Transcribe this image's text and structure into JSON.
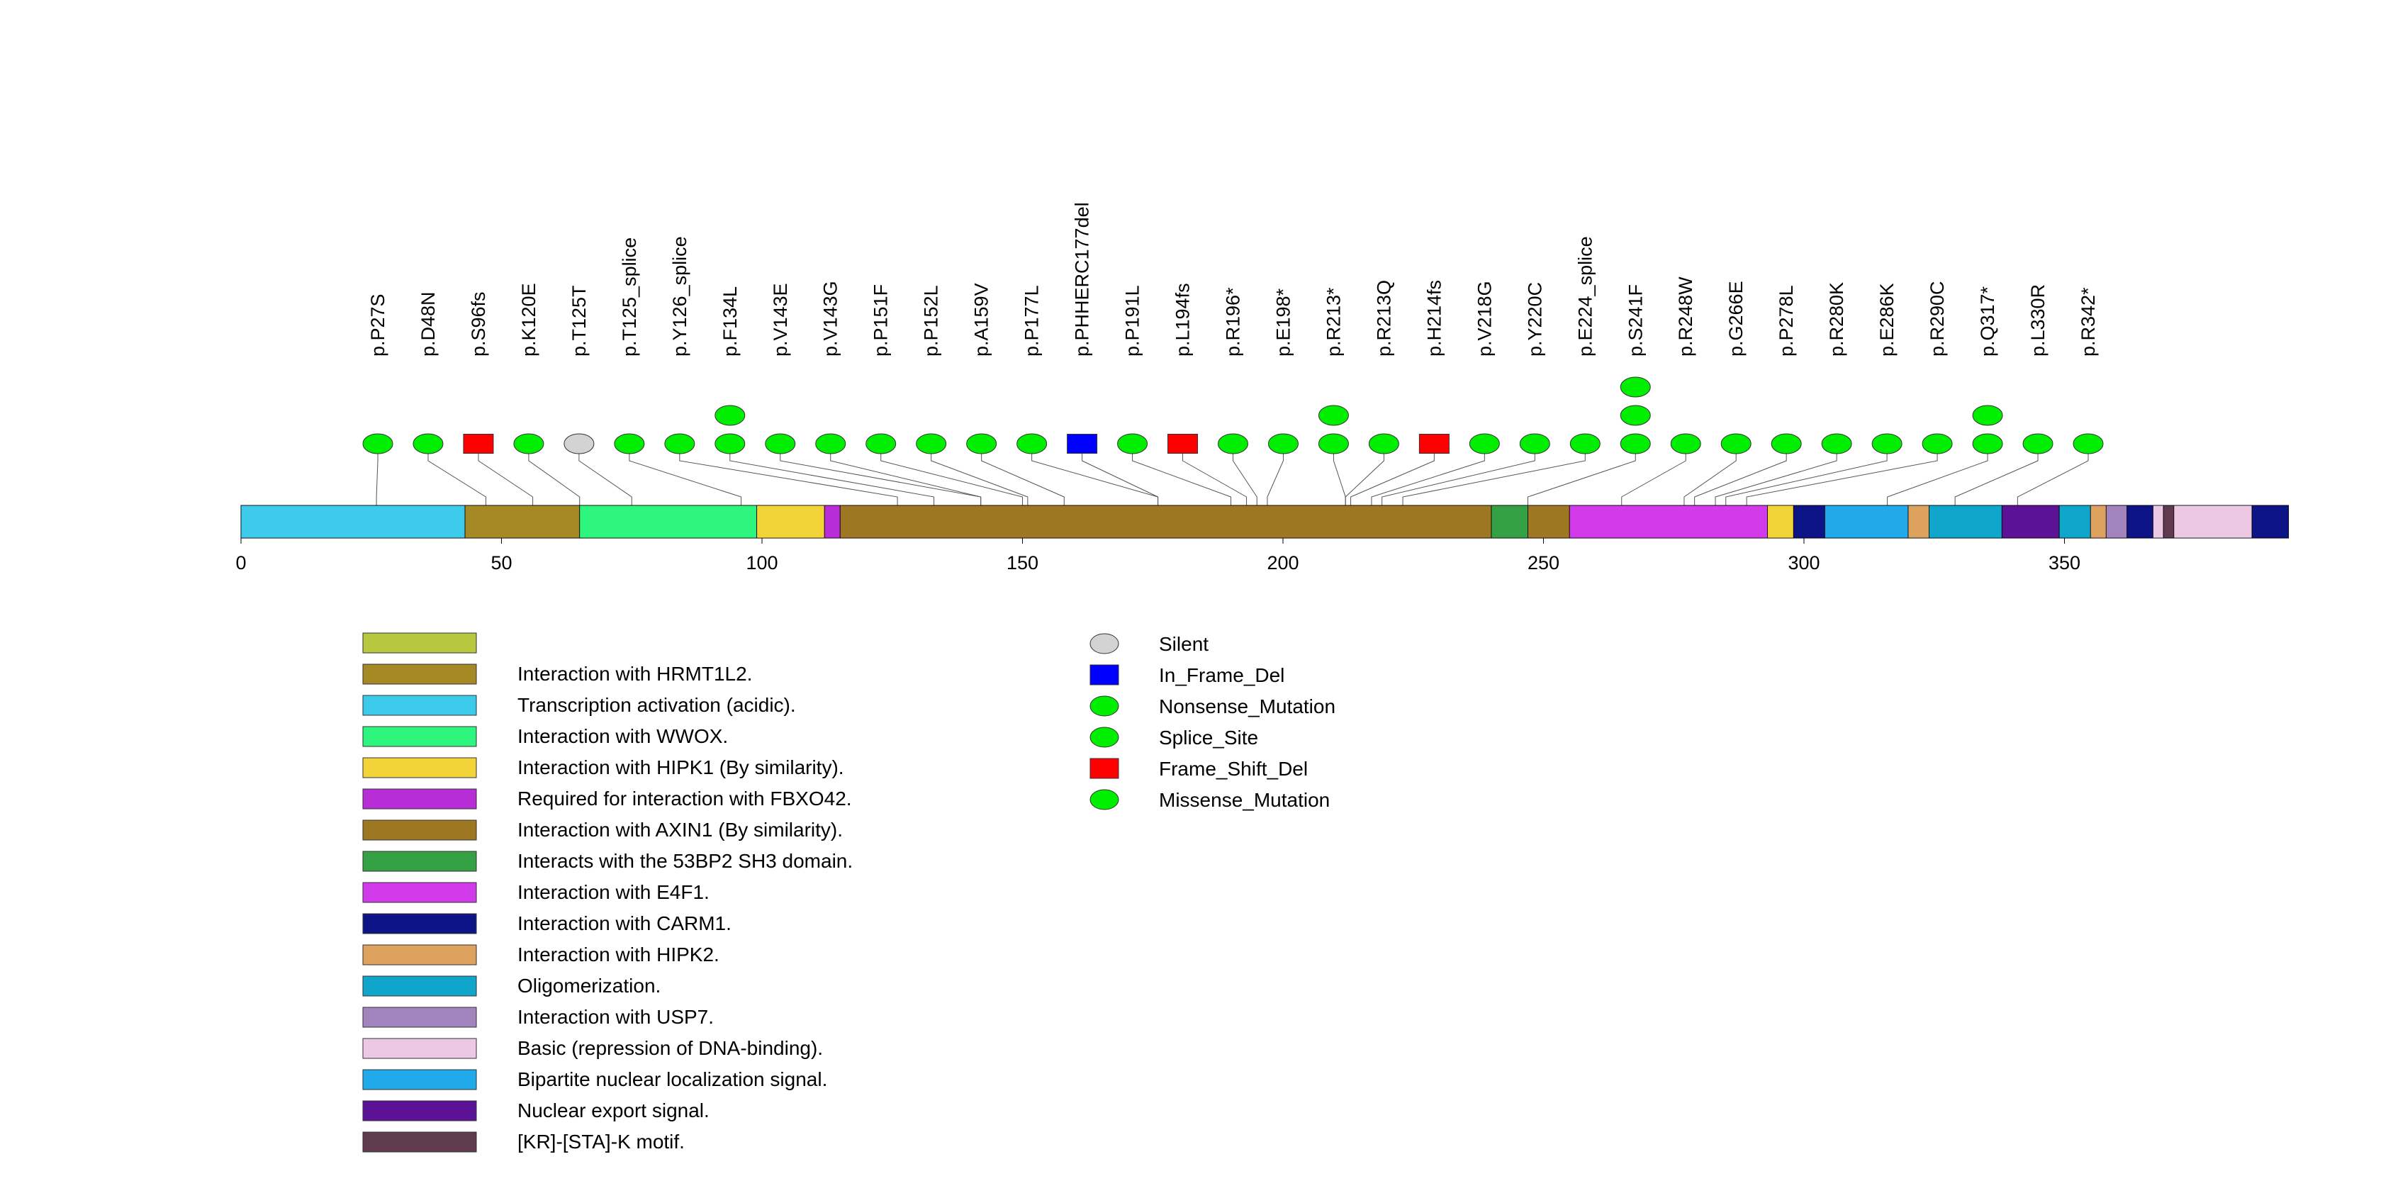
{
  "chart_data": {
    "type": "lollipop",
    "title": "",
    "xlabel": "",
    "ylabel": "",
    "xlim": [
      0,
      393
    ],
    "axis": {
      "ticks": [
        0,
        50,
        100,
        150,
        200,
        250,
        300,
        350
      ]
    },
    "domains": [
      {
        "start": 0,
        "end": 43,
        "color": "#3ecbeb",
        "label": "Transcription activation (acidic)."
      },
      {
        "start": 43,
        "end": 65,
        "color": "#a48924",
        "label": "Interaction with HRMT1L2."
      },
      {
        "start": 65,
        "end": 99,
        "color": "#2ef57e",
        "label": "Interaction with WWOX."
      },
      {
        "start": 99,
        "end": 112,
        "color": "#f2d438",
        "label": "Interaction with HIPK1 (By similarity)."
      },
      {
        "start": 112,
        "end": 115,
        "color": "#b72ed7",
        "label": "Required for interaction with FBXO42."
      },
      {
        "start": 115,
        "end": 240,
        "color": "#9d7721",
        "label": "Interaction with AXIN1 (By similarity)."
      },
      {
        "start": 240,
        "end": 247,
        "color": "#34a244",
        "label": "Interacts with the 53BP2 SH3 domain."
      },
      {
        "start": 247,
        "end": 255,
        "color": "#9d7721",
        "label": ""
      },
      {
        "start": 255,
        "end": 293,
        "color": "#d23be9",
        "label": "Interaction with E4F1."
      },
      {
        "start": 293,
        "end": 298,
        "color": "#f2d438",
        "label": ""
      },
      {
        "start": 298,
        "end": 304,
        "color": "#0c1486",
        "label": "Interaction with CARM1."
      },
      {
        "start": 304,
        "end": 320,
        "color": "#22a9ec",
        "label": "Bipartite nuclear localization signal."
      },
      {
        "start": 320,
        "end": 324,
        "color": "#dda25e",
        "label": "Interaction with HIPK2."
      },
      {
        "start": 324,
        "end": 338,
        "color": "#10a6cc",
        "label": "Oligomerization."
      },
      {
        "start": 338,
        "end": 349,
        "color": "#5b1295",
        "label": "Nuclear export signal."
      },
      {
        "start": 349,
        "end": 355,
        "color": "#10a6cc",
        "label": ""
      },
      {
        "start": 355,
        "end": 358,
        "color": "#dda25e",
        "label": ""
      },
      {
        "start": 358,
        "end": 362,
        "color": "#a184be",
        "label": "Interaction with USP7."
      },
      {
        "start": 362,
        "end": 367,
        "color": "#0c1486",
        "label": ""
      },
      {
        "start": 367,
        "end": 369,
        "color": "#ecc8e4",
        "label": ""
      },
      {
        "start": 369,
        "end": 371,
        "color": "#603b50",
        "label": "[KR]-[STA]-K motif."
      },
      {
        "start": 371,
        "end": 386,
        "color": "#ecc8e4",
        "label": "Basic (repression of DNA-binding)."
      },
      {
        "start": 386,
        "end": 393,
        "color": "#0c1486",
        "label": ""
      }
    ],
    "mutations": [
      {
        "label": "p.P27S",
        "position": 26,
        "count": 1,
        "type": "Missense_Mutation",
        "shape": "ellipse"
      },
      {
        "label": "p.D48N",
        "position": 47,
        "count": 1,
        "type": "Missense_Mutation",
        "shape": "ellipse"
      },
      {
        "label": "p.S96fs",
        "position": 56,
        "count": 1,
        "type": "Frame_Shift_Del",
        "shape": "rect"
      },
      {
        "label": "p.K120E",
        "position": 65,
        "count": 1,
        "type": "Missense_Mutation",
        "shape": "ellipse"
      },
      {
        "label": "p.T125T",
        "position": 75,
        "count": 1,
        "type": "Silent",
        "shape": "ellipse"
      },
      {
        "label": "p.T125_splice",
        "position": 96,
        "count": 1,
        "type": "Splice_Site",
        "shape": "ellipse"
      },
      {
        "label": "p.Y126_splice",
        "position": 126,
        "count": 1,
        "type": "Splice_Site",
        "shape": "ellipse"
      },
      {
        "label": "p.F134L",
        "position": 133,
        "count": 2,
        "type": "Missense_Mutation",
        "shape": "ellipse"
      },
      {
        "label": "p.V143E",
        "position": 142,
        "count": 1,
        "type": "Missense_Mutation",
        "shape": "ellipse"
      },
      {
        "label": "p.V143G",
        "position": 142,
        "count": 1,
        "type": "Missense_Mutation",
        "shape": "ellipse"
      },
      {
        "label": "p.P151F",
        "position": 150,
        "count": 1,
        "type": "Missense_Mutation",
        "shape": "ellipse"
      },
      {
        "label": "p.P152L",
        "position": 151,
        "count": 1,
        "type": "Missense_Mutation",
        "shape": "ellipse"
      },
      {
        "label": "p.A159V",
        "position": 158,
        "count": 1,
        "type": "Missense_Mutation",
        "shape": "ellipse"
      },
      {
        "label": "p.P177L",
        "position": 176,
        "count": 1,
        "type": "Missense_Mutation",
        "shape": "ellipse"
      },
      {
        "label": "p.PHHERC177del",
        "position": 176,
        "count": 1,
        "type": "In_Frame_Del",
        "shape": "rect"
      },
      {
        "label": "p.P191L",
        "position": 190,
        "count": 1,
        "type": "Missense_Mutation",
        "shape": "ellipse"
      },
      {
        "label": "p.L194fs",
        "position": 193,
        "count": 1,
        "type": "Frame_Shift_Del",
        "shape": "rect"
      },
      {
        "label": "p.R196*",
        "position": 195,
        "count": 1,
        "type": "Nonsense_Mutation",
        "shape": "ellipse"
      },
      {
        "label": "p.E198*",
        "position": 197,
        "count": 1,
        "type": "Nonsense_Mutation",
        "shape": "ellipse"
      },
      {
        "label": "p.R213*",
        "position": 212,
        "count": 2,
        "type": "Nonsense_Mutation",
        "shape": "ellipse"
      },
      {
        "label": "p.R213Q",
        "position": 212,
        "count": 1,
        "type": "Missense_Mutation",
        "shape": "ellipse"
      },
      {
        "label": "p.H214fs",
        "position": 213,
        "count": 1,
        "type": "Frame_Shift_Del",
        "shape": "rect"
      },
      {
        "label": "p.V218G",
        "position": 217,
        "count": 1,
        "type": "Missense_Mutation",
        "shape": "ellipse"
      },
      {
        "label": "p.Y220C",
        "position": 219,
        "count": 1,
        "type": "Missense_Mutation",
        "shape": "ellipse"
      },
      {
        "label": "p.E224_splice",
        "position": 223,
        "count": 1,
        "type": "Splice_Site",
        "shape": "ellipse"
      },
      {
        "label": "p.S241F",
        "position": 247,
        "count": 3,
        "type": "Missense_Mutation",
        "shape": "ellipse"
      },
      {
        "label": "p.R248W",
        "position": 265,
        "count": 1,
        "type": "Missense_Mutation",
        "shape": "ellipse"
      },
      {
        "label": "p.G266E",
        "position": 277,
        "count": 1,
        "type": "Missense_Mutation",
        "shape": "ellipse"
      },
      {
        "label": "p.P278L",
        "position": 279,
        "count": 1,
        "type": "Missense_Mutation",
        "shape": "ellipse"
      },
      {
        "label": "p.R280K",
        "position": 283,
        "count": 1,
        "type": "Missense_Mutation",
        "shape": "ellipse"
      },
      {
        "label": "p.E286K",
        "position": 285,
        "count": 1,
        "type": "Missense_Mutation",
        "shape": "ellipse"
      },
      {
        "label": "p.R290C",
        "position": 289,
        "count": 1,
        "type": "Missense_Mutation",
        "shape": "ellipse"
      },
      {
        "label": "p.Q317*",
        "position": 316,
        "count": 2,
        "type": "Nonsense_Mutation",
        "shape": "ellipse"
      },
      {
        "label": "p.L330R",
        "position": 329,
        "count": 1,
        "type": "Missense_Mutation",
        "shape": "ellipse"
      },
      {
        "label": "p.R342*",
        "position": 341,
        "count": 1,
        "type": "Nonsense_Mutation",
        "shape": "ellipse"
      }
    ],
    "legend_domains": [
      {
        "label": "",
        "color": "#b7c840"
      },
      {
        "label": "Interaction with HRMT1L2.",
        "color": "#a48924"
      },
      {
        "label": "Transcription activation (acidic).",
        "color": "#3ecbeb"
      },
      {
        "label": "Interaction with WWOX.",
        "color": "#2ef57e"
      },
      {
        "label": "Interaction with HIPK1 (By similarity).",
        "color": "#f2d438"
      },
      {
        "label": "Required for interaction with FBXO42.",
        "color": "#b72ed7"
      },
      {
        "label": "Interaction with AXIN1 (By similarity).",
        "color": "#9d7721"
      },
      {
        "label": "Interacts with the 53BP2 SH3 domain.",
        "color": "#34a244"
      },
      {
        "label": "Interaction with E4F1.",
        "color": "#d23be9"
      },
      {
        "label": "Interaction with CARM1.",
        "color": "#0c1486"
      },
      {
        "label": "Interaction with HIPK2.",
        "color": "#dda25e"
      },
      {
        "label": "Oligomerization.",
        "color": "#10a6cc"
      },
      {
        "label": "Interaction with USP7.",
        "color": "#a184be"
      },
      {
        "label": "Basic (repression of DNA-binding).",
        "color": "#ecc8e4"
      },
      {
        "label": "Bipartite nuclear localization signal.",
        "color": "#22a9ec"
      },
      {
        "label": "Nuclear export signal.",
        "color": "#5b1295"
      },
      {
        "label": "[KR]-[STA]-K motif.",
        "color": "#603b50"
      }
    ],
    "legend_mutations": [
      {
        "label": "Silent",
        "shape": "ellipse",
        "color": "#d3d3d3"
      },
      {
        "label": "In_Frame_Del",
        "shape": "rect",
        "color": "#0000ff"
      },
      {
        "label": "Nonsense_Mutation",
        "shape": "ellipse",
        "color": "#00ee00"
      },
      {
        "label": "Splice_Site",
        "shape": "ellipse",
        "color": "#00ee00"
      },
      {
        "label": "Frame_Shift_Del",
        "shape": "rect",
        "color": "#ff0000"
      },
      {
        "label": "Missense_Mutation",
        "shape": "ellipse",
        "color": "#00ee00"
      }
    ],
    "type_colors": {
      "Silent": "#d3d3d3",
      "In_Frame_Del": "#0000ff",
      "Nonsense_Mutation": "#00ee00",
      "Splice_Site": "#00ee00",
      "Frame_Shift_Del": "#ff0000",
      "Missense_Mutation": "#00ee00"
    }
  }
}
